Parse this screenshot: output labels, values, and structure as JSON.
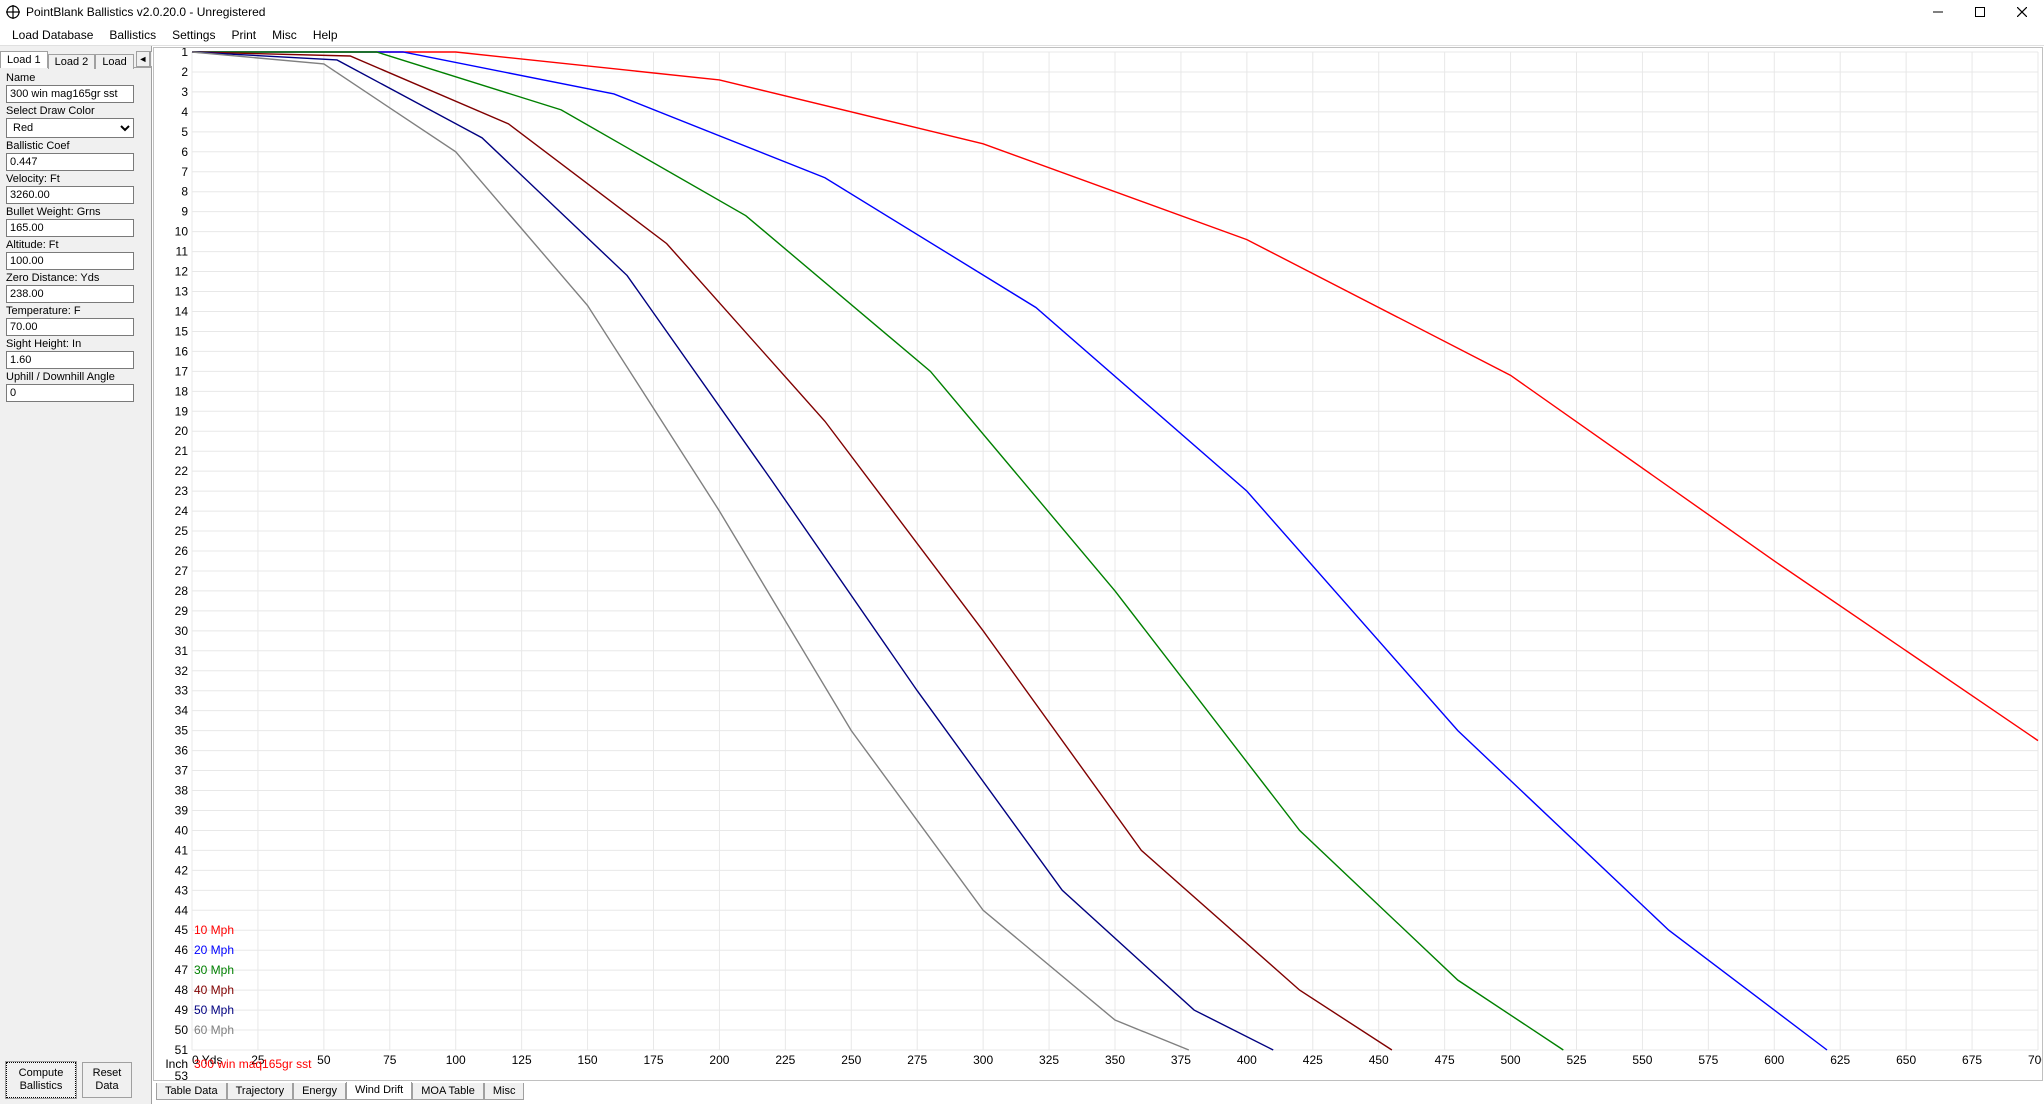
{
  "window": {
    "title": "PointBlank Ballistics v2.0.20.0 - Unregistered"
  },
  "menu": {
    "items": [
      "Load Database",
      "Ballistics",
      "Settings",
      "Print",
      "Misc",
      "Help"
    ]
  },
  "load_tabs": {
    "tabs": [
      "Load 1",
      "Load 2",
      "Load "
    ],
    "active_index": 0
  },
  "form": {
    "name_label": "Name",
    "name_value": "300 win mag165gr sst",
    "color_label": "Select Draw Color",
    "color_value": "Red",
    "bc_label": "Ballistic Coef",
    "bc_value": "0.447",
    "velocity_label": "Velocity: Ft",
    "velocity_value": "3260.00",
    "weight_label": "Bullet Weight: Grns",
    "weight_value": "165.00",
    "altitude_label": "Altitude: Ft",
    "altitude_value": "100.00",
    "zero_label": "Zero Distance: Yds",
    "zero_value": "238.00",
    "temp_label": "Temperature: F",
    "temp_value": "70.00",
    "sight_label": "Sight Height: In",
    "sight_value": "1.60",
    "angle_label": "Uphill / Downhill Angle",
    "angle_value": "0"
  },
  "buttons": {
    "compute": "Compute\nBallistics",
    "reset": "Reset\nData"
  },
  "bottom_tabs": {
    "tabs": [
      "Table Data",
      "Trajectory",
      "Energy",
      "Wind Drift",
      "MOA Table",
      "Misc"
    ],
    "active_index": 3
  },
  "chart": {
    "type": "line",
    "background_color": "#ffffff",
    "grid_color": "#e8e8e8",
    "axis_color": "#000000",
    "y_title": "Inch",
    "y_bottom_extra": "53",
    "x_title": "0 Yds",
    "x_min": 0,
    "x_max": 700,
    "x_tick_step": 25,
    "x_ticks": [
      25,
      50,
      75,
      100,
      125,
      150,
      175,
      200,
      225,
      250,
      275,
      300,
      325,
      350,
      375,
      400,
      425,
      450,
      475,
      500,
      525,
      550,
      575,
      600,
      625,
      650,
      675,
      700
    ],
    "y_min": 1,
    "y_max": 51,
    "y_ticks": [
      1,
      2,
      3,
      4,
      5,
      6,
      7,
      8,
      9,
      10,
      11,
      12,
      13,
      14,
      15,
      16,
      17,
      18,
      19,
      20,
      21,
      22,
      23,
      24,
      25,
      26,
      27,
      28,
      29,
      30,
      31,
      32,
      33,
      34,
      35,
      36,
      37,
      38,
      39,
      40,
      41,
      42,
      43,
      44,
      45,
      46,
      47,
      48,
      49,
      50,
      51
    ],
    "series_name_label": "300 win maq165gr sst",
    "series_name_color": "#ff0000",
    "series": [
      {
        "label": "10 Mph",
        "color": "#ff0000",
        "max_yards_at_51": 1000,
        "points": [
          [
            0,
            0
          ],
          [
            100,
            0.6
          ],
          [
            200,
            2.4
          ],
          [
            300,
            5.6
          ],
          [
            400,
            10.4
          ],
          [
            500,
            17.2
          ],
          [
            600,
            26.5
          ],
          [
            700,
            35.5
          ]
        ]
      },
      {
        "label": "20 Mph",
        "color": "#0000ff",
        "max_yards_at_51": 620,
        "points": [
          [
            0,
            0
          ],
          [
            80,
            0.8
          ],
          [
            160,
            3.1
          ],
          [
            240,
            7.3
          ],
          [
            320,
            13.8
          ],
          [
            400,
            23
          ],
          [
            480,
            35
          ],
          [
            560,
            45
          ],
          [
            620,
            51
          ]
        ]
      },
      {
        "label": "30 Mph",
        "color": "#008000",
        "max_yards_at_51": 520,
        "points": [
          [
            0,
            0
          ],
          [
            70,
            1.0
          ],
          [
            140,
            3.9
          ],
          [
            210,
            9.2
          ],
          [
            280,
            17
          ],
          [
            350,
            28
          ],
          [
            420,
            40
          ],
          [
            480,
            47.5
          ],
          [
            520,
            51
          ]
        ]
      },
      {
        "label": "40 Mph",
        "color": "#800000",
        "max_yards_at_51": 455,
        "points": [
          [
            0,
            0
          ],
          [
            60,
            1.2
          ],
          [
            120,
            4.6
          ],
          [
            180,
            10.6
          ],
          [
            240,
            19.5
          ],
          [
            300,
            30
          ],
          [
            360,
            41
          ],
          [
            420,
            48
          ],
          [
            455,
            51
          ]
        ]
      },
      {
        "label": "50 Mph",
        "color": "#000080",
        "max_yards_at_51": 410,
        "points": [
          [
            0,
            0
          ],
          [
            55,
            1.4
          ],
          [
            110,
            5.3
          ],
          [
            165,
            12.2
          ],
          [
            220,
            22.5
          ],
          [
            275,
            33
          ],
          [
            330,
            43
          ],
          [
            380,
            49
          ],
          [
            410,
            51
          ]
        ]
      },
      {
        "label": "60 Mph",
        "color": "#808080",
        "max_yards_at_51": 378,
        "points": [
          [
            0,
            0
          ],
          [
            50,
            1.6
          ],
          [
            100,
            6.0
          ],
          [
            150,
            13.7
          ],
          [
            200,
            24
          ],
          [
            250,
            35
          ],
          [
            300,
            44
          ],
          [
            350,
            49.5
          ],
          [
            378,
            51
          ]
        ]
      }
    ],
    "legend_y_start": 45,
    "label_fontsize": 11
  }
}
